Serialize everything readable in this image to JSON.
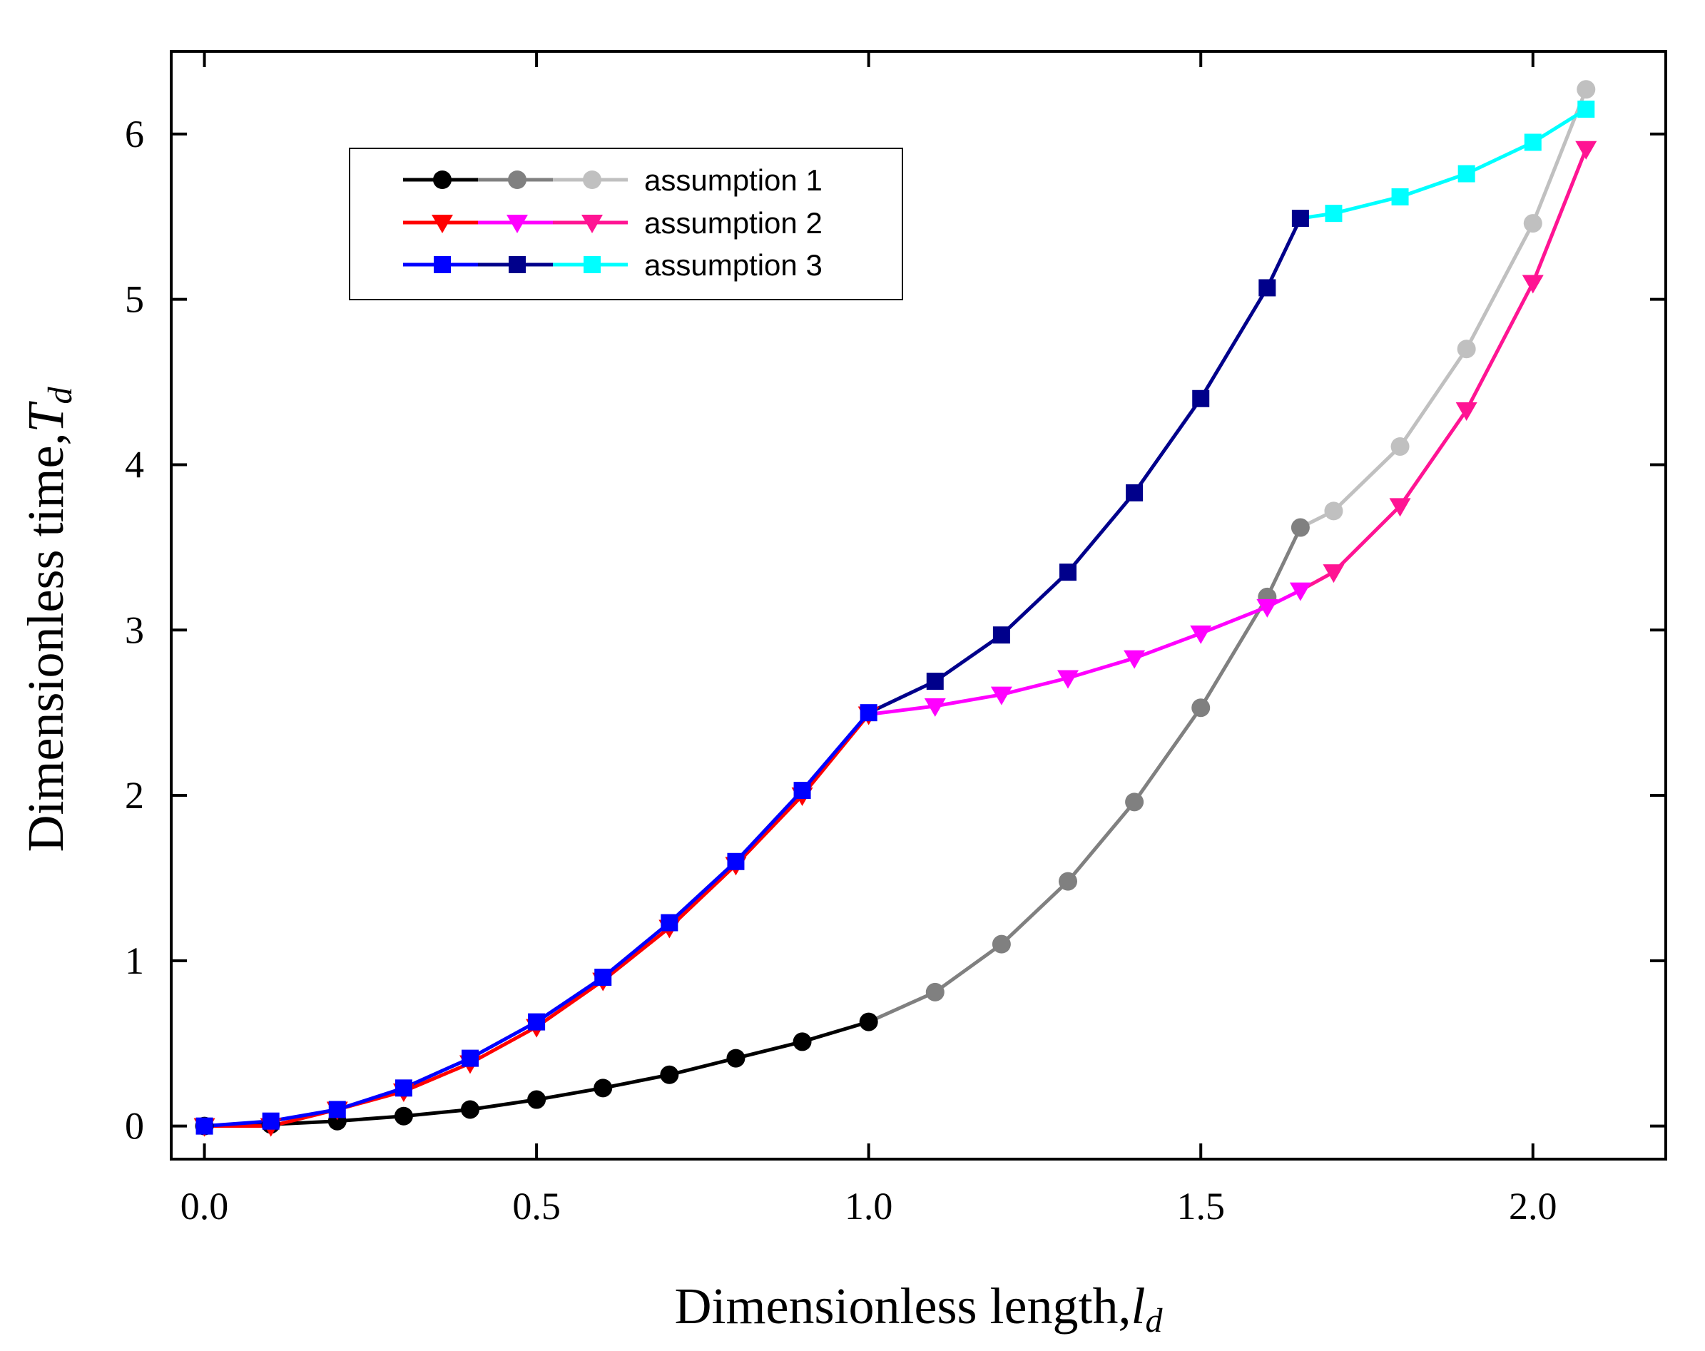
{
  "chart_data": {
    "type": "line",
    "xlabel": {
      "text": "Dimensionless length,",
      "var": "l",
      "sub": "d"
    },
    "ylabel": {
      "text": "Dimensionless time,",
      "var": "T",
      "sub": "d"
    },
    "xlim": [
      -0.05,
      2.2
    ],
    "ylim": [
      -0.2,
      6.5
    ],
    "xticks": [
      "0.0",
      "0.5",
      "1.0",
      "1.5",
      "2.0"
    ],
    "xtick_values": [
      0,
      0.5,
      1.0,
      1.5,
      2.0
    ],
    "yticks": [
      "0",
      "1",
      "2",
      "3",
      "4",
      "5",
      "6"
    ],
    "ytick_values": [
      0,
      1,
      2,
      3,
      4,
      5,
      6
    ],
    "legend_position": "top-left",
    "series": [
      {
        "name": "assumption 1",
        "marker": "circle",
        "segments": [
          {
            "color": "#000000",
            "points": [
              [
                0,
                0
              ],
              [
                0.1,
                0.01
              ],
              [
                0.2,
                0.03
              ],
              [
                0.3,
                0.06
              ],
              [
                0.4,
                0.1
              ],
              [
                0.5,
                0.16
              ],
              [
                0.6,
                0.23
              ],
              [
                0.7,
                0.31
              ],
              [
                0.8,
                0.41
              ],
              [
                0.9,
                0.51
              ],
              [
                1.0,
                0.63
              ]
            ]
          },
          {
            "color": "#808080",
            "points": [
              [
                1.0,
                0.63
              ],
              [
                1.1,
                0.81
              ],
              [
                1.2,
                1.1
              ],
              [
                1.3,
                1.48
              ],
              [
                1.4,
                1.96
              ],
              [
                1.5,
                2.53
              ],
              [
                1.6,
                3.2
              ],
              [
                1.65,
                3.62
              ]
            ]
          },
          {
            "color": "#c0c0c0",
            "points": [
              [
                1.65,
                3.62
              ],
              [
                1.7,
                3.72
              ],
              [
                1.8,
                4.11
              ],
              [
                1.9,
                4.7
              ],
              [
                2.0,
                5.46
              ],
              [
                2.08,
                6.27
              ]
            ]
          }
        ]
      },
      {
        "name": "assumption 2",
        "marker": "triangle-down",
        "segments": [
          {
            "color": "#ff0000",
            "points": [
              [
                0,
                0
              ],
              [
                0.1,
                0.0
              ],
              [
                0.2,
                0.1
              ],
              [
                0.3,
                0.21
              ],
              [
                0.4,
                0.38
              ],
              [
                0.5,
                0.6
              ],
              [
                0.6,
                0.88
              ],
              [
                0.7,
                1.2
              ],
              [
                0.8,
                1.58
              ],
              [
                0.9,
                2.0
              ],
              [
                1.0,
                2.49
              ]
            ]
          },
          {
            "color": "#ff00ff",
            "points": [
              [
                1.0,
                2.49
              ],
              [
                1.1,
                2.54
              ],
              [
                1.2,
                2.61
              ],
              [
                1.3,
                2.71
              ],
              [
                1.4,
                2.83
              ],
              [
                1.5,
                2.98
              ],
              [
                1.6,
                3.14
              ],
              [
                1.65,
                3.24
              ]
            ]
          },
          {
            "color": "#ff1493",
            "points": [
              [
                1.65,
                3.24
              ],
              [
                1.7,
                3.35
              ],
              [
                1.8,
                3.75
              ],
              [
                1.9,
                4.33
              ],
              [
                2.0,
                5.1
              ],
              [
                2.08,
                5.91
              ]
            ]
          }
        ]
      },
      {
        "name": "assumption 3",
        "marker": "square",
        "segments": [
          {
            "color": "#0000ff",
            "points": [
              [
                0,
                0
              ],
              [
                0.1,
                0.03
              ],
              [
                0.2,
                0.1
              ],
              [
                0.3,
                0.23
              ],
              [
                0.4,
                0.41
              ],
              [
                0.5,
                0.63
              ],
              [
                0.6,
                0.9
              ],
              [
                0.7,
                1.23
              ],
              [
                0.8,
                1.6
              ],
              [
                0.9,
                2.03
              ],
              [
                1.0,
                2.5
              ]
            ]
          },
          {
            "color": "#00008b",
            "points": [
              [
                1.0,
                2.5
              ],
              [
                1.1,
                2.69
              ],
              [
                1.2,
                2.97
              ],
              [
                1.3,
                3.35
              ],
              [
                1.4,
                3.83
              ],
              [
                1.5,
                4.4
              ],
              [
                1.6,
                5.07
              ],
              [
                1.65,
                5.49
              ]
            ]
          },
          {
            "color": "#00ffff",
            "points": [
              [
                1.65,
                5.49
              ],
              [
                1.7,
                5.52
              ],
              [
                1.8,
                5.62
              ],
              [
                1.9,
                5.76
              ],
              [
                2.0,
                5.95
              ],
              [
                2.08,
                6.15
              ]
            ]
          }
        ]
      }
    ]
  }
}
